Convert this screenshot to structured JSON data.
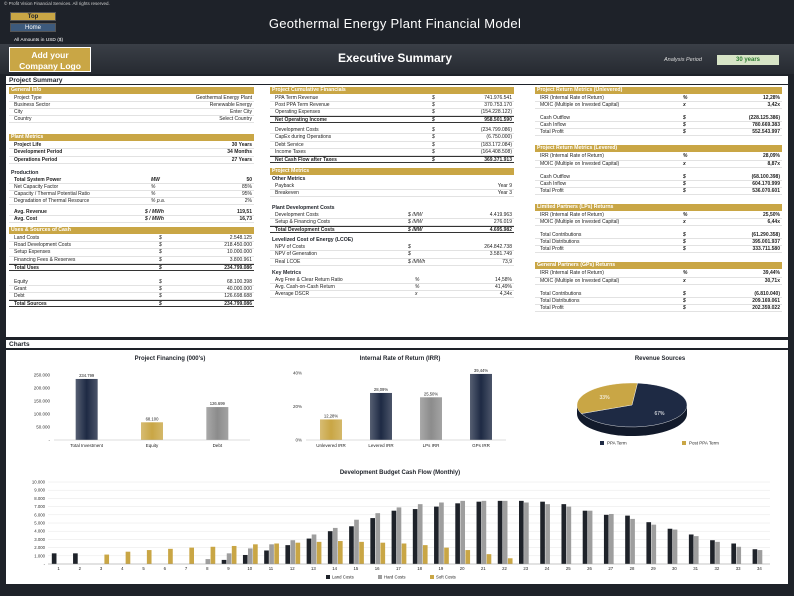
{
  "header": {
    "copyright": "© Profit Vision Financial Services. All rights reserved.",
    "nav_top": "Top",
    "nav_home": "Home",
    "title": "Geothermal Energy Plant Financial Model",
    "amounts_note": "All Amounts in  USD ($)",
    "logo_line1": "Add your",
    "logo_line2": "Company Logo",
    "page_title": "Executive Summary",
    "analysis_period_label": "Analysis Period",
    "analysis_period_value": "30 years"
  },
  "sections": {
    "summary": "Project Summary",
    "charts": "Charts"
  },
  "colors": {
    "gold": "#c9a645",
    "navy": "#1e2a44",
    "dark": "#1e2229"
  },
  "col1": {
    "general_info": {
      "title": "General Info",
      "rows": [
        {
          "label": "Project Type",
          "unit": "",
          "value": "Geothermal Energy Plant"
        },
        {
          "label": "Business Sector",
          "unit": "",
          "value": "Renewable Energy"
        },
        {
          "label": "City",
          "unit": "",
          "value": "Enter City"
        },
        {
          "label": "Country",
          "unit": "",
          "value": "Select Country"
        }
      ]
    },
    "plant_metrics": {
      "title": "Plant Metrics",
      "rows": [
        {
          "label": "Project Life",
          "unit": "",
          "value": "30 Years",
          "bold": true
        },
        {
          "label": "Development Period",
          "unit": "",
          "value": "34 Months",
          "bold": true
        },
        {
          "label": "Operations Period",
          "unit": "",
          "value": "27 Years",
          "bold": true
        }
      ]
    },
    "production": {
      "title": "Production",
      "rows": [
        {
          "label": "Total System Power",
          "unit": "MW",
          "value": "50",
          "bold": true
        },
        {
          "label": "Net Capacity Factor",
          "unit": "%",
          "value": "85%"
        },
        {
          "label": "Capacity / Thermal Potential Ratio",
          "unit": "%",
          "value": "95%"
        },
        {
          "label": "Degradation of Thermal Resource",
          "unit": "% p.a.",
          "value": "2%"
        }
      ]
    },
    "avg": {
      "rows": [
        {
          "label": "Avg. Revenue",
          "unit": "$ / MWh",
          "value": "119,51",
          "bold": true
        },
        {
          "label": "Avg. Cost",
          "unit": "$ / MWh",
          "value": "16,73",
          "bold": true
        }
      ]
    },
    "uses_sources": {
      "title": "Uses & Sources of Cash",
      "uses": [
        {
          "label": "Land Costs",
          "unit": "$",
          "value": "2.548.125"
        },
        {
          "label": "Road Development Costs",
          "unit": "$",
          "value": "218.450.000"
        },
        {
          "label": "Setup Expenses",
          "unit": "$",
          "value": "10.000.000"
        },
        {
          "label": "Financing Fees & Reserves",
          "unit": "$",
          "value": "3.800.961"
        }
      ],
      "total_uses": {
        "label": "Total Uses",
        "unit": "$",
        "value": "234.799.086"
      },
      "sources": [
        {
          "label": "Equity",
          "unit": "$",
          "value": "68.100.398"
        },
        {
          "label": "Grant",
          "unit": "$",
          "value": "40.000.000"
        },
        {
          "label": "Debt",
          "unit": "$",
          "value": "126.698.688"
        }
      ],
      "total_sources": {
        "label": "Total Sources",
        "unit": "$",
        "value": "234.799.086"
      }
    }
  },
  "col2": {
    "cumulative": {
      "title": "Project Cumulative Financials",
      "rows": [
        {
          "label": "PPA Term Revenue",
          "unit": "$",
          "value": "741.976.541"
        },
        {
          "label": "Post PPA Term Revenue",
          "unit": "$",
          "value": "370.753.170"
        },
        {
          "label": "Operating Expenses",
          "unit": "$",
          "value": "(154.228.122)"
        }
      ],
      "noi": {
        "label": "Net Operating Income",
        "unit": "$",
        "value": "958.501.590"
      },
      "rows2": [
        {
          "label": "Development Costs",
          "unit": "$",
          "value": "(234.799.086)"
        },
        {
          "label": "CapEx during Operations",
          "unit": "$",
          "value": "(6.750.000)"
        },
        {
          "label": "Debt Service",
          "unit": "$",
          "value": "(183.172.084)"
        },
        {
          "label": "Income Taxes",
          "unit": "$",
          "value": "(164.408.508)"
        }
      ],
      "net_cf": {
        "label": "Net Cash Flow after Taxes",
        "unit": "$",
        "value": "369.371.913"
      }
    },
    "project_metrics": {
      "title": "Project Metrics",
      "other_title": "Other Metrics",
      "rows": [
        {
          "label": "Payback",
          "unit": "",
          "value": "Year 9"
        },
        {
          "label": "Breakeven",
          "unit": "",
          "value": "Year 3"
        }
      ]
    },
    "plant_dev": {
      "title": "Plant Development Costs",
      "rows": [
        {
          "label": "Development Costs",
          "unit": "$ /MW",
          "value": "4.419.963"
        },
        {
          "label": "Setup & Financing Costs",
          "unit": "$ /MW",
          "value": "276.019"
        }
      ],
      "total": {
        "label": "Total Development Costs",
        "unit": "$ /MW",
        "value": "4.695.982"
      }
    },
    "lcoe": {
      "title": "Levelized Cost of Energy (LCOE)",
      "rows": [
        {
          "label": "NPV of Costs",
          "unit": "$",
          "value": "264.842.738"
        },
        {
          "label": "NPV of Generation",
          "unit": "$",
          "value": "3.581.749"
        },
        {
          "label": "Real LCOE",
          "unit": "$ /MWh",
          "value": "73,9"
        }
      ]
    },
    "key_metrics": {
      "title": "Key Metrics",
      "rows": [
        {
          "label": "Avg Free & Clear Return Ratio",
          "unit": "%",
          "value": "14,58%"
        },
        {
          "label": "Avg. Cash-on-Cash Return",
          "unit": "%",
          "value": "41,49%"
        },
        {
          "label": "Average DSCR",
          "unit": "x",
          "value": "4,34x"
        }
      ]
    }
  },
  "col3": {
    "unlevered": {
      "title": "Project Return Metrics (Unlevered)",
      "rows": [
        {
          "label": "IRR (Internal Rate of Return)",
          "unit": "%",
          "value": "12,28%"
        },
        {
          "label": "MOIC (Multiple on Invested Capital)",
          "unit": "x",
          "value": "3,42x"
        }
      ],
      "cash": [
        {
          "label": "Cash Outflow",
          "unit": "$",
          "value": "(228.125.386)"
        },
        {
          "label": "Cash Inflow",
          "unit": "$",
          "value": "780.669.383"
        },
        {
          "label": "Total Profit",
          "unit": "$",
          "value": "552.543.997"
        }
      ]
    },
    "levered": {
      "title": "Project Return Metrics (Levered)",
      "rows": [
        {
          "label": "IRR (Internal Rate of Return)",
          "unit": "%",
          "value": "28,09%"
        },
        {
          "label": "MOIC (Multiple on Invested Capital)",
          "unit": "x",
          "value": "8,87x"
        }
      ],
      "cash": [
        {
          "label": "Cash Outflow",
          "unit": "$",
          "value": "(68.100.398)"
        },
        {
          "label": "Cash Inflow",
          "unit": "$",
          "value": "604.170.999"
        },
        {
          "label": "Total Profit",
          "unit": "$",
          "value": "536.070.601"
        }
      ]
    },
    "lps": {
      "title": "Limited Partners (LPs) Returns",
      "rows": [
        {
          "label": "IRR (Internal Rate of Return)",
          "unit": "%",
          "value": "25,50%"
        },
        {
          "label": "MOIC (Multiple on Invested Capital)",
          "unit": "x",
          "value": "6,44x"
        }
      ],
      "cash": [
        {
          "label": "Total Contributions",
          "unit": "$",
          "value": "(61.290.358)"
        },
        {
          "label": "Total Distributions",
          "unit": "$",
          "value": "395.001.937"
        },
        {
          "label": "Total Profit",
          "unit": "$",
          "value": "333.711.580"
        }
      ]
    },
    "gps": {
      "title": "General Partners (GPs) Returns",
      "rows": [
        {
          "label": "IRR (Internal Rate of Return)",
          "unit": "%",
          "value": "39,44%"
        },
        {
          "label": "MOIC (Multiple on Invested Capital)",
          "unit": "x",
          "value": "30,71x"
        }
      ],
      "cash": [
        {
          "label": "Total Contributions",
          "unit": "$",
          "value": "(6.810.040)"
        },
        {
          "label": "Total Distributions",
          "unit": "$",
          "value": "209.169.061"
        },
        {
          "label": "Total Profit",
          "unit": "$",
          "value": "202.359.022"
        }
      ]
    }
  },
  "chart_data": [
    {
      "type": "bar",
      "title": "Project Financing (000's)",
      "categories": [
        "Total Investment",
        "Equity",
        "Debt"
      ],
      "values": [
        234799,
        68100,
        126699
      ],
      "labels": [
        "234.799",
        "68.100",
        "126.699"
      ],
      "yticks": [
        "250.000",
        "200.000",
        "150.000",
        "100.000",
        "50.000",
        "-"
      ],
      "ylim": [
        0,
        250000
      ],
      "colors": [
        "#1e2a44",
        "#c9a645",
        "#8c8c8c"
      ]
    },
    {
      "type": "bar",
      "title": "Internal Rate of Return (IRR)",
      "categories": [
        "Unlevered IRR",
        "Levered IRR",
        "LPs IRR",
        "GPs IRR"
      ],
      "values": [
        12.28,
        28.09,
        25.5,
        39.44
      ],
      "labels": [
        "12,28%",
        "28,09%",
        "25,50%",
        "39,44%"
      ],
      "yticks": [
        "40%",
        "20%",
        "0%"
      ],
      "ylim": [
        0,
        40
      ],
      "colors": [
        "#c9a645",
        "#1e2a44",
        "#8c8c8c",
        "#1e2a44"
      ]
    },
    {
      "type": "pie",
      "title": "Revenue Sources",
      "categories": [
        "PPA Term",
        "Post PPA Term"
      ],
      "values": [
        67,
        33
      ],
      "labels": [
        "67%",
        "33%"
      ],
      "colors": [
        "#1e2a44",
        "#c9a645"
      ],
      "legend": "bottom"
    },
    {
      "type": "bar",
      "title": "Development Budget Cash Flow (Monthly)",
      "x": [
        "1",
        "2",
        "3",
        "4",
        "5",
        "6",
        "7",
        "8",
        "9",
        "10",
        "11",
        "12",
        "13",
        "14",
        "15",
        "16",
        "17",
        "18",
        "19",
        "20",
        "21",
        "22",
        "23",
        "24",
        "25",
        "26",
        "27",
        "28",
        "29",
        "30",
        "31",
        "32",
        "33",
        "34"
      ],
      "yticks": [
        "10.000",
        "9.000",
        "8.000",
        "7.000",
        "6.000",
        "5.000",
        "4.000",
        "3.000",
        "2.000",
        "1.000",
        "-"
      ],
      "ylim": [
        0,
        10000
      ],
      "series": [
        {
          "name": "Land Costs",
          "color": "#1e2229",
          "values": [
            1300,
            1300,
            0,
            0,
            0,
            0,
            0,
            0,
            500,
            1100,
            1650,
            2300,
            3100,
            4000,
            4600,
            5600,
            6500,
            6700,
            7000,
            7400,
            7600,
            7700,
            7700,
            7600,
            7300,
            6500,
            6000,
            5900,
            5100,
            4300,
            3600,
            2900,
            2500,
            1800
          ]
        },
        {
          "name": "Hard Costs",
          "color": "#9e9e9e",
          "values": [
            0,
            0,
            0,
            0,
            0,
            0,
            0,
            600,
            1300,
            1900,
            2400,
            2900,
            3600,
            4400,
            5400,
            6200,
            6900,
            7300,
            7500,
            7700,
            7700,
            7700,
            7500,
            7300,
            7000,
            6500,
            6100,
            5500,
            4800,
            4200,
            3400,
            2700,
            2100,
            1700
          ]
        },
        {
          "name": "Soft Costs",
          "color": "#c9a645",
          "values": [
            0,
            0,
            1150,
            1500,
            1700,
            1850,
            2000,
            2100,
            2200,
            2400,
            2500,
            2600,
            2700,
            2800,
            2700,
            2600,
            2500,
            2300,
            2000,
            1700,
            1200,
            700,
            0,
            0,
            0,
            0,
            0,
            0,
            0,
            0,
            0,
            0,
            0,
            0
          ]
        }
      ],
      "legend": "bottom"
    }
  ]
}
